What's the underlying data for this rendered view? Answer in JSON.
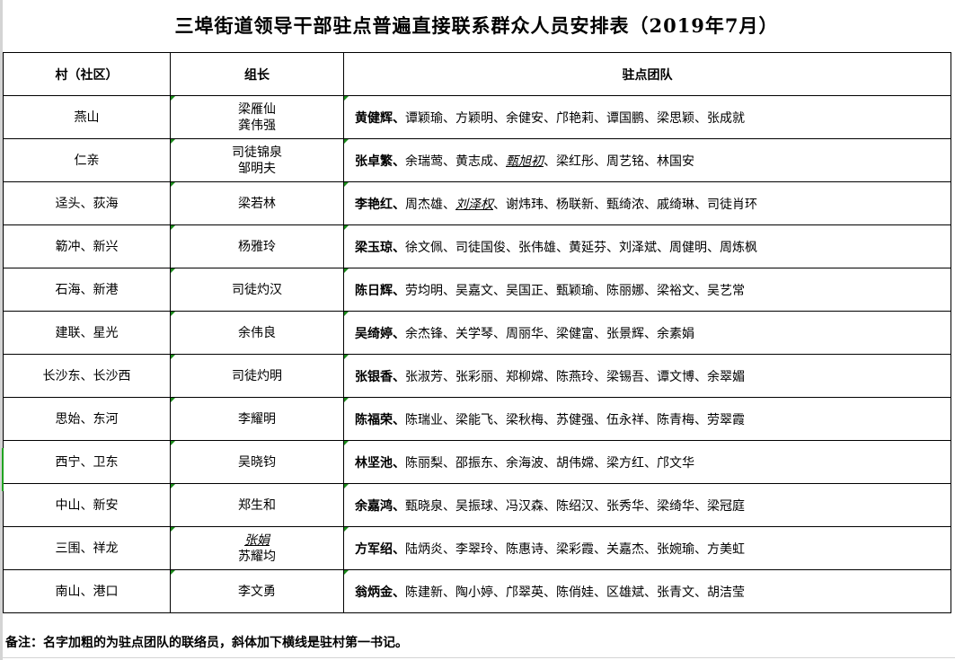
{
  "title": "三埠街道领导干部驻点普遍直接联系群众人员安排表（2019年7月）",
  "headers": {
    "village": "村（社区）",
    "leader": "组长",
    "team": "驻点团队"
  },
  "rows": [
    {
      "village": "燕山",
      "leaders": [
        {
          "name": "梁雁仙"
        },
        {
          "name": "龚伟强"
        }
      ],
      "liaison": "黄健辉",
      "members": [
        {
          "name": "谭颖瑜"
        },
        {
          "name": "方颖明"
        },
        {
          "name": "余健安"
        },
        {
          "name": "邝艳莉"
        },
        {
          "name": "谭国鹏"
        },
        {
          "name": "梁思颖"
        },
        {
          "name": "张成就"
        }
      ]
    },
    {
      "village": "仁亲",
      "leaders": [
        {
          "name": "司徒锦泉"
        },
        {
          "name": "邹明夫"
        }
      ],
      "liaison": "张卓繁",
      "members": [
        {
          "name": "余瑞莺"
        },
        {
          "name": "黄志成"
        },
        {
          "name": "甄旭初",
          "first_secretary": true
        },
        {
          "name": "梁红彤"
        },
        {
          "name": "周艺铭"
        },
        {
          "name": "林国安"
        }
      ]
    },
    {
      "village": "迳头、荻海",
      "leaders": [
        {
          "name": "梁若林"
        }
      ],
      "liaison": "李艳红",
      "members": [
        {
          "name": "周杰雄"
        },
        {
          "name": "刘泽权",
          "first_secretary": true
        },
        {
          "name": "谢炜玮"
        },
        {
          "name": "杨联新"
        },
        {
          "name": "甄绮浓"
        },
        {
          "name": "戚绮琳"
        },
        {
          "name": "司徒肖环"
        }
      ]
    },
    {
      "village": "簕冲、新兴",
      "leaders": [
        {
          "name": "杨雅玲"
        }
      ],
      "liaison": "梁玉琼",
      "members": [
        {
          "name": "徐文佩"
        },
        {
          "name": "司徒国俊"
        },
        {
          "name": "张伟雄"
        },
        {
          "name": "黄延芬"
        },
        {
          "name": "刘泽斌"
        },
        {
          "name": "周健明"
        },
        {
          "name": "周炼枫"
        }
      ]
    },
    {
      "village": "石海、新港",
      "leaders": [
        {
          "name": "司徒灼汉"
        }
      ],
      "liaison": "陈日辉",
      "members": [
        {
          "name": "劳均明"
        },
        {
          "name": "吴嘉文"
        },
        {
          "name": "吴国正"
        },
        {
          "name": "甄颖瑜"
        },
        {
          "name": "陈丽娜"
        },
        {
          "name": "梁裕文"
        },
        {
          "name": "吴艺常"
        }
      ]
    },
    {
      "village": "建联、星光",
      "leaders": [
        {
          "name": "余伟良"
        }
      ],
      "liaison": "吴绮婷",
      "members": [
        {
          "name": "余杰锋"
        },
        {
          "name": "关学琴"
        },
        {
          "name": "周丽华"
        },
        {
          "name": "梁健富"
        },
        {
          "name": "张景辉"
        },
        {
          "name": "余素娟"
        }
      ]
    },
    {
      "village": "长沙东、长沙西",
      "leaders": [
        {
          "name": "司徒灼明"
        }
      ],
      "liaison": "张银香",
      "members": [
        {
          "name": "张淑芳"
        },
        {
          "name": "张彩丽"
        },
        {
          "name": "郑柳嫦"
        },
        {
          "name": "陈燕玲"
        },
        {
          "name": "梁锡吾"
        },
        {
          "name": "谭文博"
        },
        {
          "name": "余翠媚"
        }
      ]
    },
    {
      "village": "思始、东河",
      "leaders": [
        {
          "name": "李耀明"
        }
      ],
      "liaison": "陈福荣",
      "members": [
        {
          "name": "陈瑞业"
        },
        {
          "name": "梁能飞"
        },
        {
          "name": "梁秋梅"
        },
        {
          "name": "苏健强"
        },
        {
          "name": "伍永祥"
        },
        {
          "name": "陈青梅"
        },
        {
          "name": "劳翠霞"
        }
      ]
    },
    {
      "village": "西宁、卫东",
      "leaders": [
        {
          "name": "吴晓钧"
        }
      ],
      "liaison": "林坚池",
      "members": [
        {
          "name": "陈丽梨"
        },
        {
          "name": "邵振东"
        },
        {
          "name": "余海波"
        },
        {
          "name": "胡伟嫦"
        },
        {
          "name": "梁方红"
        },
        {
          "name": "邝文华"
        }
      ]
    },
    {
      "village": "中山、新安",
      "leaders": [
        {
          "name": "郑生和"
        }
      ],
      "liaison": "余嘉鸿",
      "members": [
        {
          "name": "甄晓泉"
        },
        {
          "name": "吴振球"
        },
        {
          "name": "冯汉森"
        },
        {
          "name": "陈绍汉"
        },
        {
          "name": "张秀华"
        },
        {
          "name": "梁绮华"
        },
        {
          "name": "梁冠庭"
        }
      ]
    },
    {
      "village": "三围、祥龙",
      "leaders": [
        {
          "name": "张娟",
          "first_secretary": true
        },
        {
          "name": "苏耀均"
        }
      ],
      "liaison": "方军绍",
      "members": [
        {
          "name": "陆炳炎"
        },
        {
          "name": "李翠玲"
        },
        {
          "name": "陈惠诗"
        },
        {
          "name": "梁彩霞"
        },
        {
          "name": "关嘉杰"
        },
        {
          "name": "张婉瑜"
        },
        {
          "name": "方美虹"
        }
      ]
    },
    {
      "village": "南山、港口",
      "leaders": [
        {
          "name": "李文勇"
        }
      ],
      "liaison": "翁炳金",
      "members": [
        {
          "name": "陈建新"
        },
        {
          "name": "陶小婷"
        },
        {
          "name": "邝翠英"
        },
        {
          "name": "陈俏娃"
        },
        {
          "name": "区雄斌"
        },
        {
          "name": "张青文"
        },
        {
          "name": "胡洁莹"
        }
      ]
    }
  ],
  "separator": "、",
  "note": "备注：名字加粗的为驻点团队的联络员，斜体加下横线是驻村第一书记。",
  "colors": {
    "comment_marker": "#1a8a1a",
    "selection": "#21a321"
  }
}
